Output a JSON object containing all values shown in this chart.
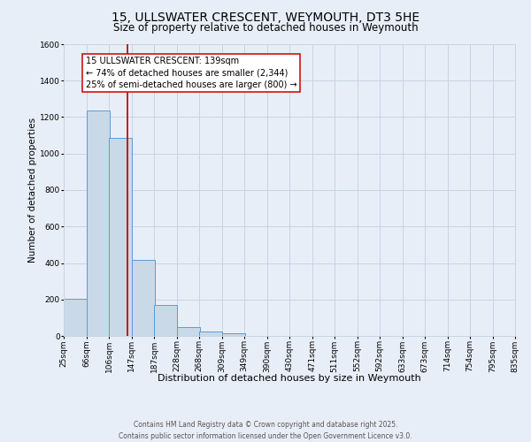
{
  "title": "15, ULLSWATER CRESCENT, WEYMOUTH, DT3 5HE",
  "subtitle": "Size of property relative to detached houses in Weymouth",
  "xlabel": "Distribution of detached houses by size in Weymouth",
  "ylabel": "Number of detached properties",
  "bin_edges": [
    25,
    66,
    106,
    147,
    187,
    228,
    268,
    309,
    349,
    390,
    430,
    471,
    511,
    552,
    592,
    633,
    673,
    714,
    754,
    795,
    835
  ],
  "bin_labels": [
    "25sqm",
    "66sqm",
    "106sqm",
    "147sqm",
    "187sqm",
    "228sqm",
    "268sqm",
    "309sqm",
    "349sqm",
    "390sqm",
    "430sqm",
    "471sqm",
    "511sqm",
    "552sqm",
    "592sqm",
    "633sqm",
    "673sqm",
    "714sqm",
    "754sqm",
    "795sqm",
    "835sqm"
  ],
  "bar_heights": [
    205,
    1235,
    1085,
    415,
    170,
    50,
    22,
    15,
    0,
    0,
    0,
    0,
    0,
    0,
    0,
    0,
    0,
    0,
    0,
    0
  ],
  "bar_facecolor": "#c9d9e8",
  "bar_edgecolor": "#5b9bd5",
  "grid_color": "#c8d4e4",
  "background_color": "#e8eef8",
  "property_line_x": 139,
  "property_line_color": "#cc0000",
  "annotation_line1": "15 ULLSWATER CRESCENT: 139sqm",
  "annotation_line2": "← 74% of detached houses are smaller (2,344)",
  "annotation_line3": "25% of semi-detached houses are larger (800) →",
  "annotation_box_facecolor": "white",
  "annotation_box_edgecolor": "#cc0000",
  "ylim": [
    0,
    1600
  ],
  "yticks": [
    0,
    200,
    400,
    600,
    800,
    1000,
    1200,
    1400,
    1600
  ],
  "footer_line1": "Contains HM Land Registry data © Crown copyright and database right 2025.",
  "footer_line2": "Contains public sector information licensed under the Open Government Licence v3.0.",
  "title_fontsize": 10,
  "subtitle_fontsize": 8.5,
  "xlabel_fontsize": 8,
  "ylabel_fontsize": 7.5,
  "tick_fontsize": 6.5,
  "annotation_fontsize": 7,
  "footer_fontsize": 5.5
}
